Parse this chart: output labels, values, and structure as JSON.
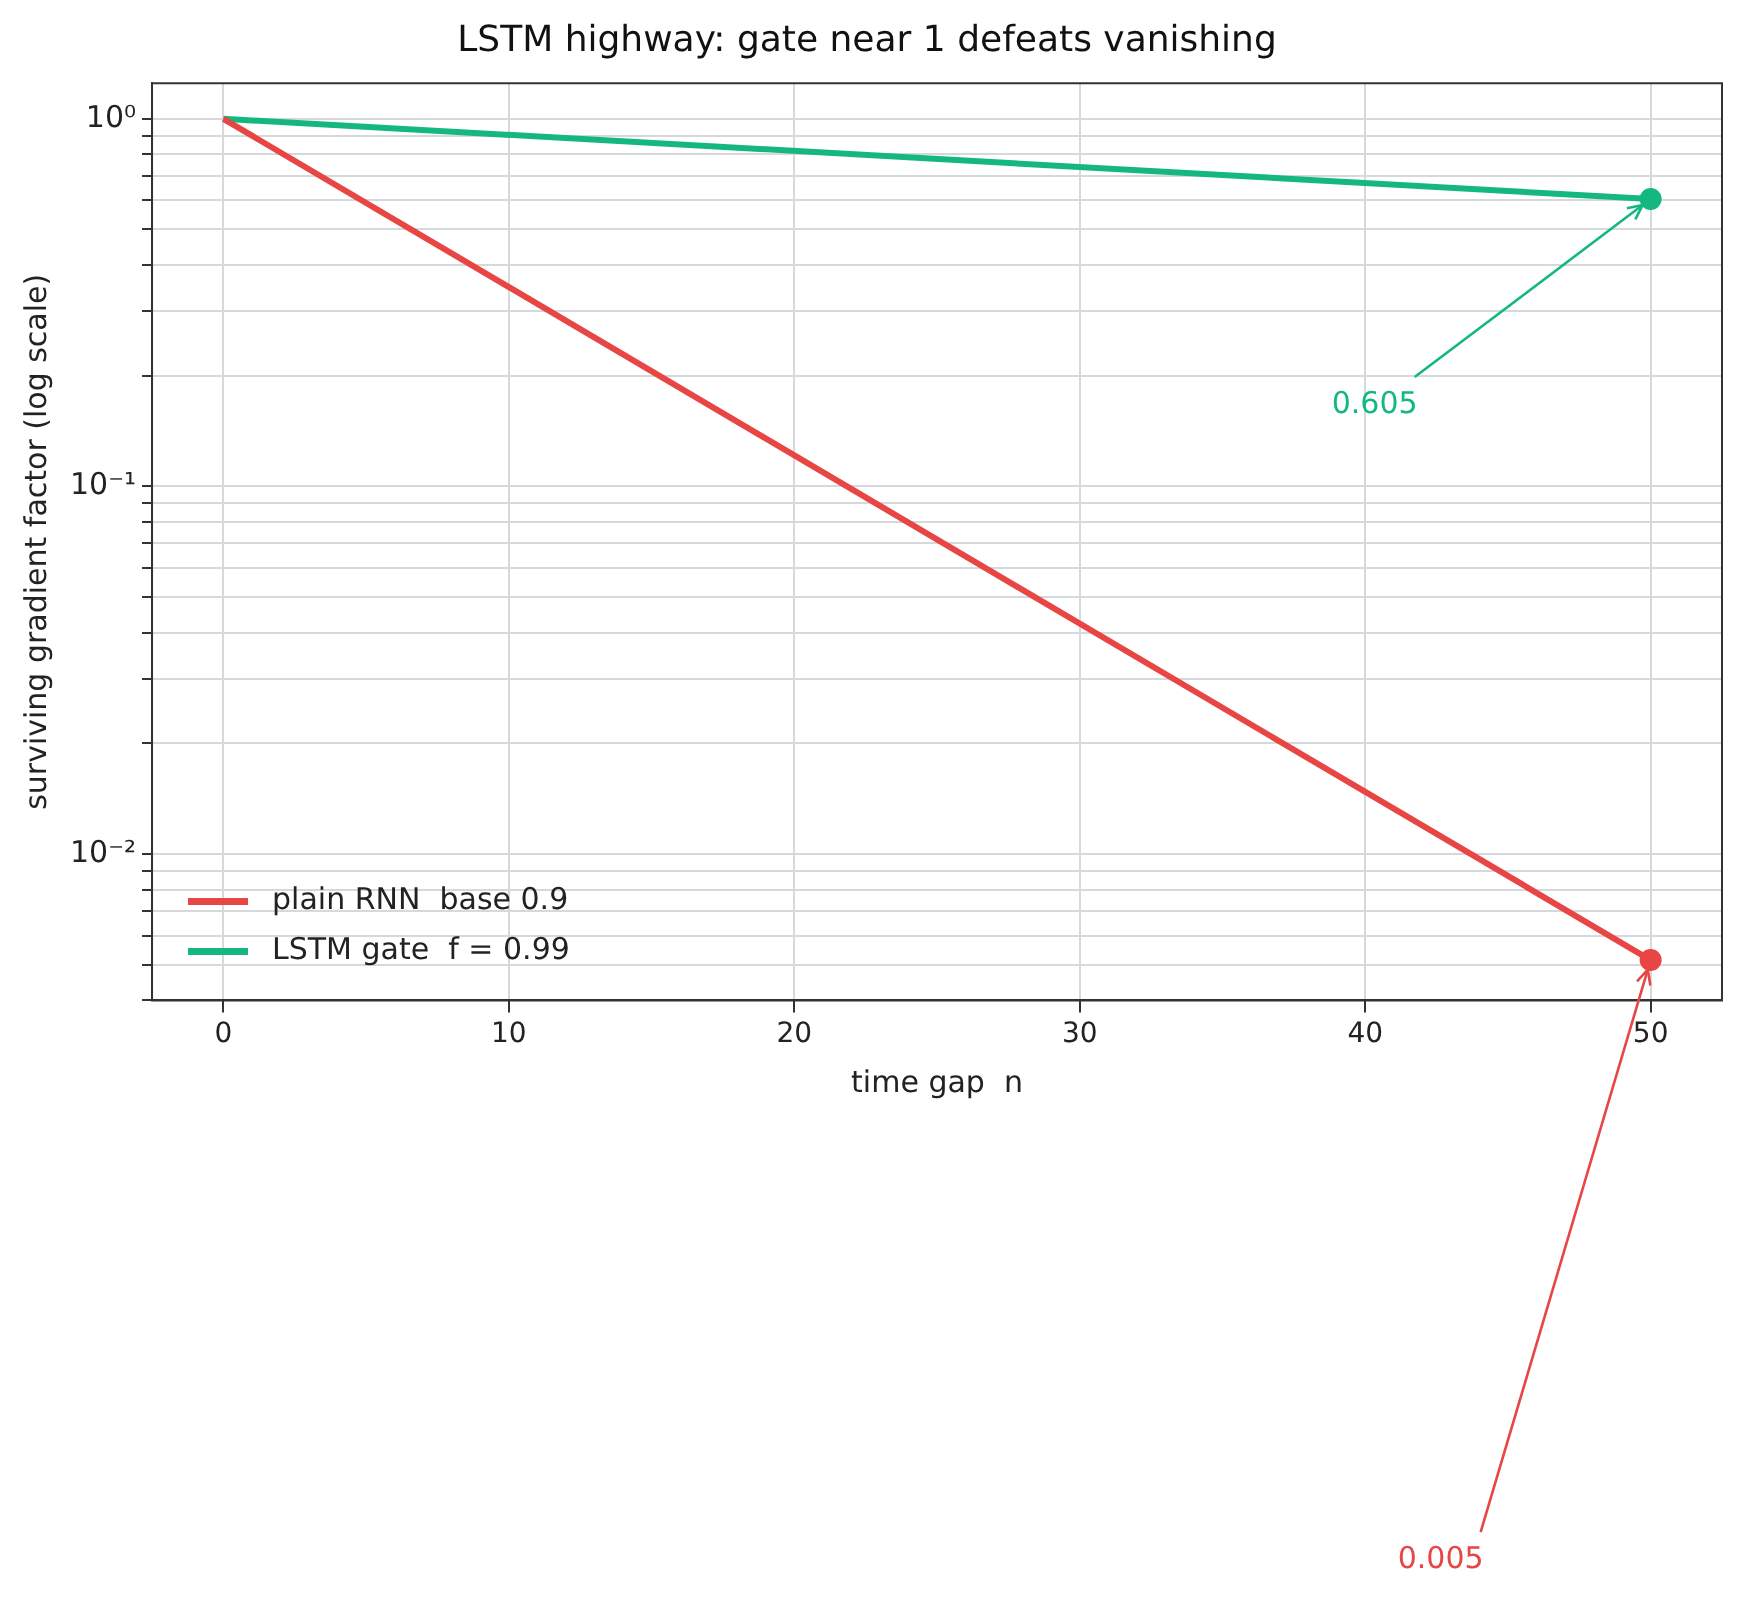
{
  "chart_data": {
    "type": "line",
    "title": "LSTM highway: gate near 1 defeats vanishing",
    "xlabel": "time gap  n",
    "ylabel": "surviving gradient factor (log scale)",
    "series": [
      {
        "name": "plain RNN  base 0.9",
        "color": "#e84545",
        "values": [
          1,
          0.00515
        ]
      },
      {
        "name": "LSTM gate  f = 0.99",
        "color": "#14b87f",
        "values": [
          1,
          0.605
        ]
      },
      {
        "type": "scatter",
        "color": "#e84545",
        "x": [
          50
        ],
        "values": [
          0.00515
        ],
        "marker": "circle"
      },
      {
        "type": "scatter",
        "color": "#14b87f",
        "x": [
          50
        ],
        "values": [
          0.605
        ],
        "marker": "circle"
      }
    ],
    "annotations": [
      {
        "text": "0.005",
        "x": 50,
        "y": 0.00515
      },
      {
        "text": "0.605",
        "x": 50,
        "y": 0.605
      }
    ],
    "x": [
      0,
      50
    ],
    "log": "y",
    "xlim": [
      -2.5,
      52.5
    ],
    "xticks": [
      0,
      10,
      20,
      30,
      40,
      50
    ],
    "ylim": [
      0.004,
      1.25
    ],
    "yticks": [
      {
        "value": 0.004,
        "label": null
      },
      {
        "value": 0.005,
        "label": null
      },
      {
        "value": 0.006,
        "label": null
      },
      {
        "value": 0.007,
        "label": null
      },
      {
        "value": 0.008,
        "label": null
      },
      {
        "value": 0.009,
        "label": null
      },
      {
        "value": 0.01,
        "label": "10⁻²"
      },
      {
        "value": 0.02,
        "label": null
      },
      {
        "value": 0.03,
        "label": null
      },
      {
        "value": 0.04,
        "label": null
      },
      {
        "value": 0.05,
        "label": null
      },
      {
        "value": 0.06,
        "label": null
      },
      {
        "value": 0.07,
        "label": null
      },
      {
        "value": 0.08,
        "label": null
      },
      {
        "value": 0.09,
        "label": null
      },
      {
        "value": 0.1,
        "label": "10⁻¹"
      },
      {
        "value": 0.2,
        "label": null
      },
      {
        "value": 0.3,
        "label": null
      },
      {
        "value": 0.4,
        "label": null
      },
      {
        "value": 0.5,
        "label": null
      },
      {
        "value": 0.6,
        "label": null
      },
      {
        "value": 0.7,
        "label": null
      },
      {
        "value": 0.8,
        "label": null
      },
      {
        "value": 0.9,
        "label": null
      },
      {
        "value": 1,
        "label": "10⁰"
      }
    ],
    "grid": true,
    "legend": "bottom left",
    "line_style": "solid"
  }
}
